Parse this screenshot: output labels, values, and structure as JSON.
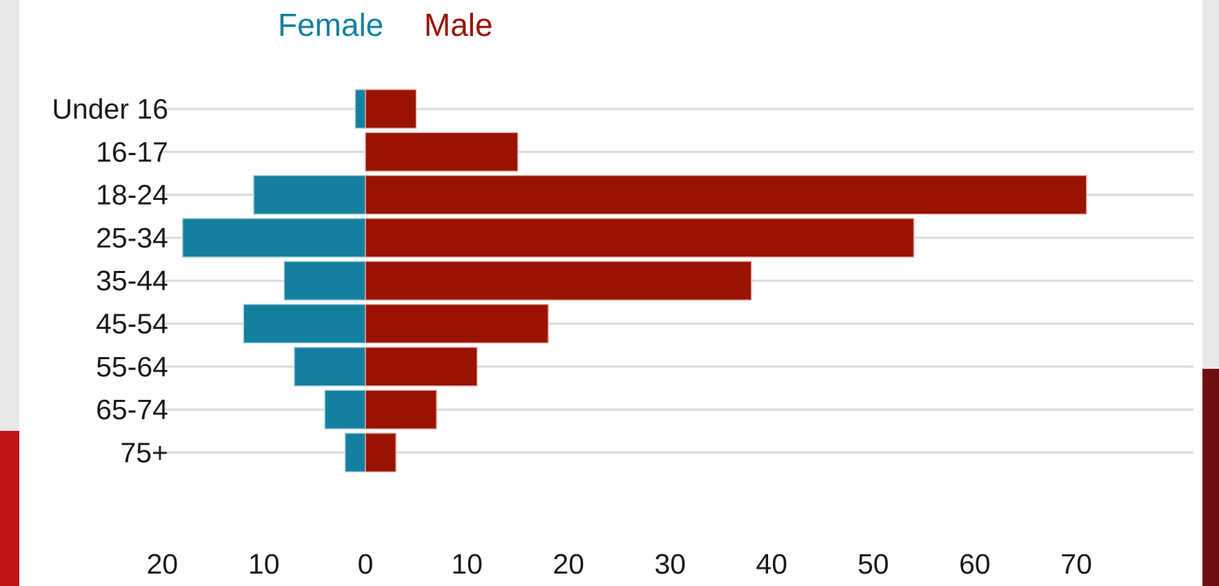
{
  "chart_data": {
    "type": "bar",
    "orientation": "horizontal",
    "layout": "population-pyramid",
    "categories": [
      "Under 16",
      "16-17",
      "18-24",
      "25-34",
      "35-44",
      "45-54",
      "55-64",
      "65-74",
      "75+"
    ],
    "series": [
      {
        "name": "Female",
        "color": "#14809f",
        "direction": "left",
        "values": [
          1,
          0,
          11,
          18,
          8,
          12,
          7,
          4,
          2
        ]
      },
      {
        "name": "Male",
        "color": "#991300",
        "direction": "right",
        "values": [
          5,
          15,
          71,
          54,
          38,
          18,
          11,
          7,
          3
        ]
      }
    ],
    "xticks": [
      "20",
      "10",
      "0",
      "10",
      "20",
      "30",
      "40",
      "50",
      "60",
      "70"
    ],
    "xlim": [
      -20,
      70
    ],
    "legend_position": "top-left",
    "grid": true
  },
  "colors": {
    "background": "#e9e9e9",
    "panel": "#ffffff",
    "accent_left": "#c0141b",
    "accent_right": "#6e0e10"
  }
}
